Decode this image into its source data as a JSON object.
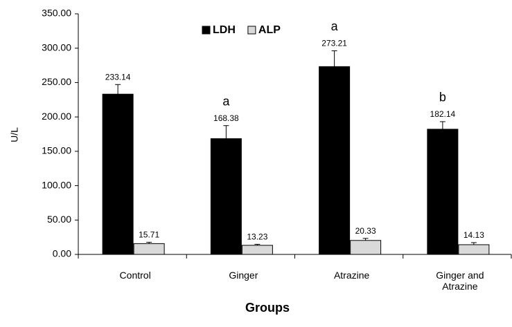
{
  "chart_data": {
    "type": "bar",
    "x_label": "Groups",
    "y_label": "U/L",
    "categories": [
      "Control",
      "Ginger",
      "Atrazine",
      "Ginger and Atrazine"
    ],
    "series": [
      {
        "name": "LDH",
        "color": "#000000",
        "values": [
          233.14,
          168.38,
          273.21,
          182.14
        ],
        "errors": [
          14,
          19,
          23,
          11
        ]
      },
      {
        "name": "ALP",
        "color": "#d9d9d9",
        "values": [
          15.71,
          13.23,
          20.33,
          14.13
        ],
        "errors": [
          2,
          1.5,
          3,
          3
        ]
      }
    ],
    "annotations": [
      {
        "text": "a",
        "group": "Ginger"
      },
      {
        "text": "a",
        "group": "Atrazine"
      },
      {
        "text": "b",
        "group": "Ginger and Atrazine"
      }
    ],
    "ylim": [
      0,
      350
    ],
    "yticks": [
      {
        "value": 0,
        "label": "0.00"
      },
      {
        "value": 50,
        "label": "50.00"
      },
      {
        "value": 100,
        "label": "100.00"
      },
      {
        "value": 150,
        "label": "150.00"
      },
      {
        "value": 200,
        "label": "200.00"
      },
      {
        "value": 250,
        "label": "250.00"
      },
      {
        "value": 300,
        "label": "300.00"
      },
      {
        "value": 350,
        "label": "350.00"
      }
    ],
    "legend": "top"
  }
}
